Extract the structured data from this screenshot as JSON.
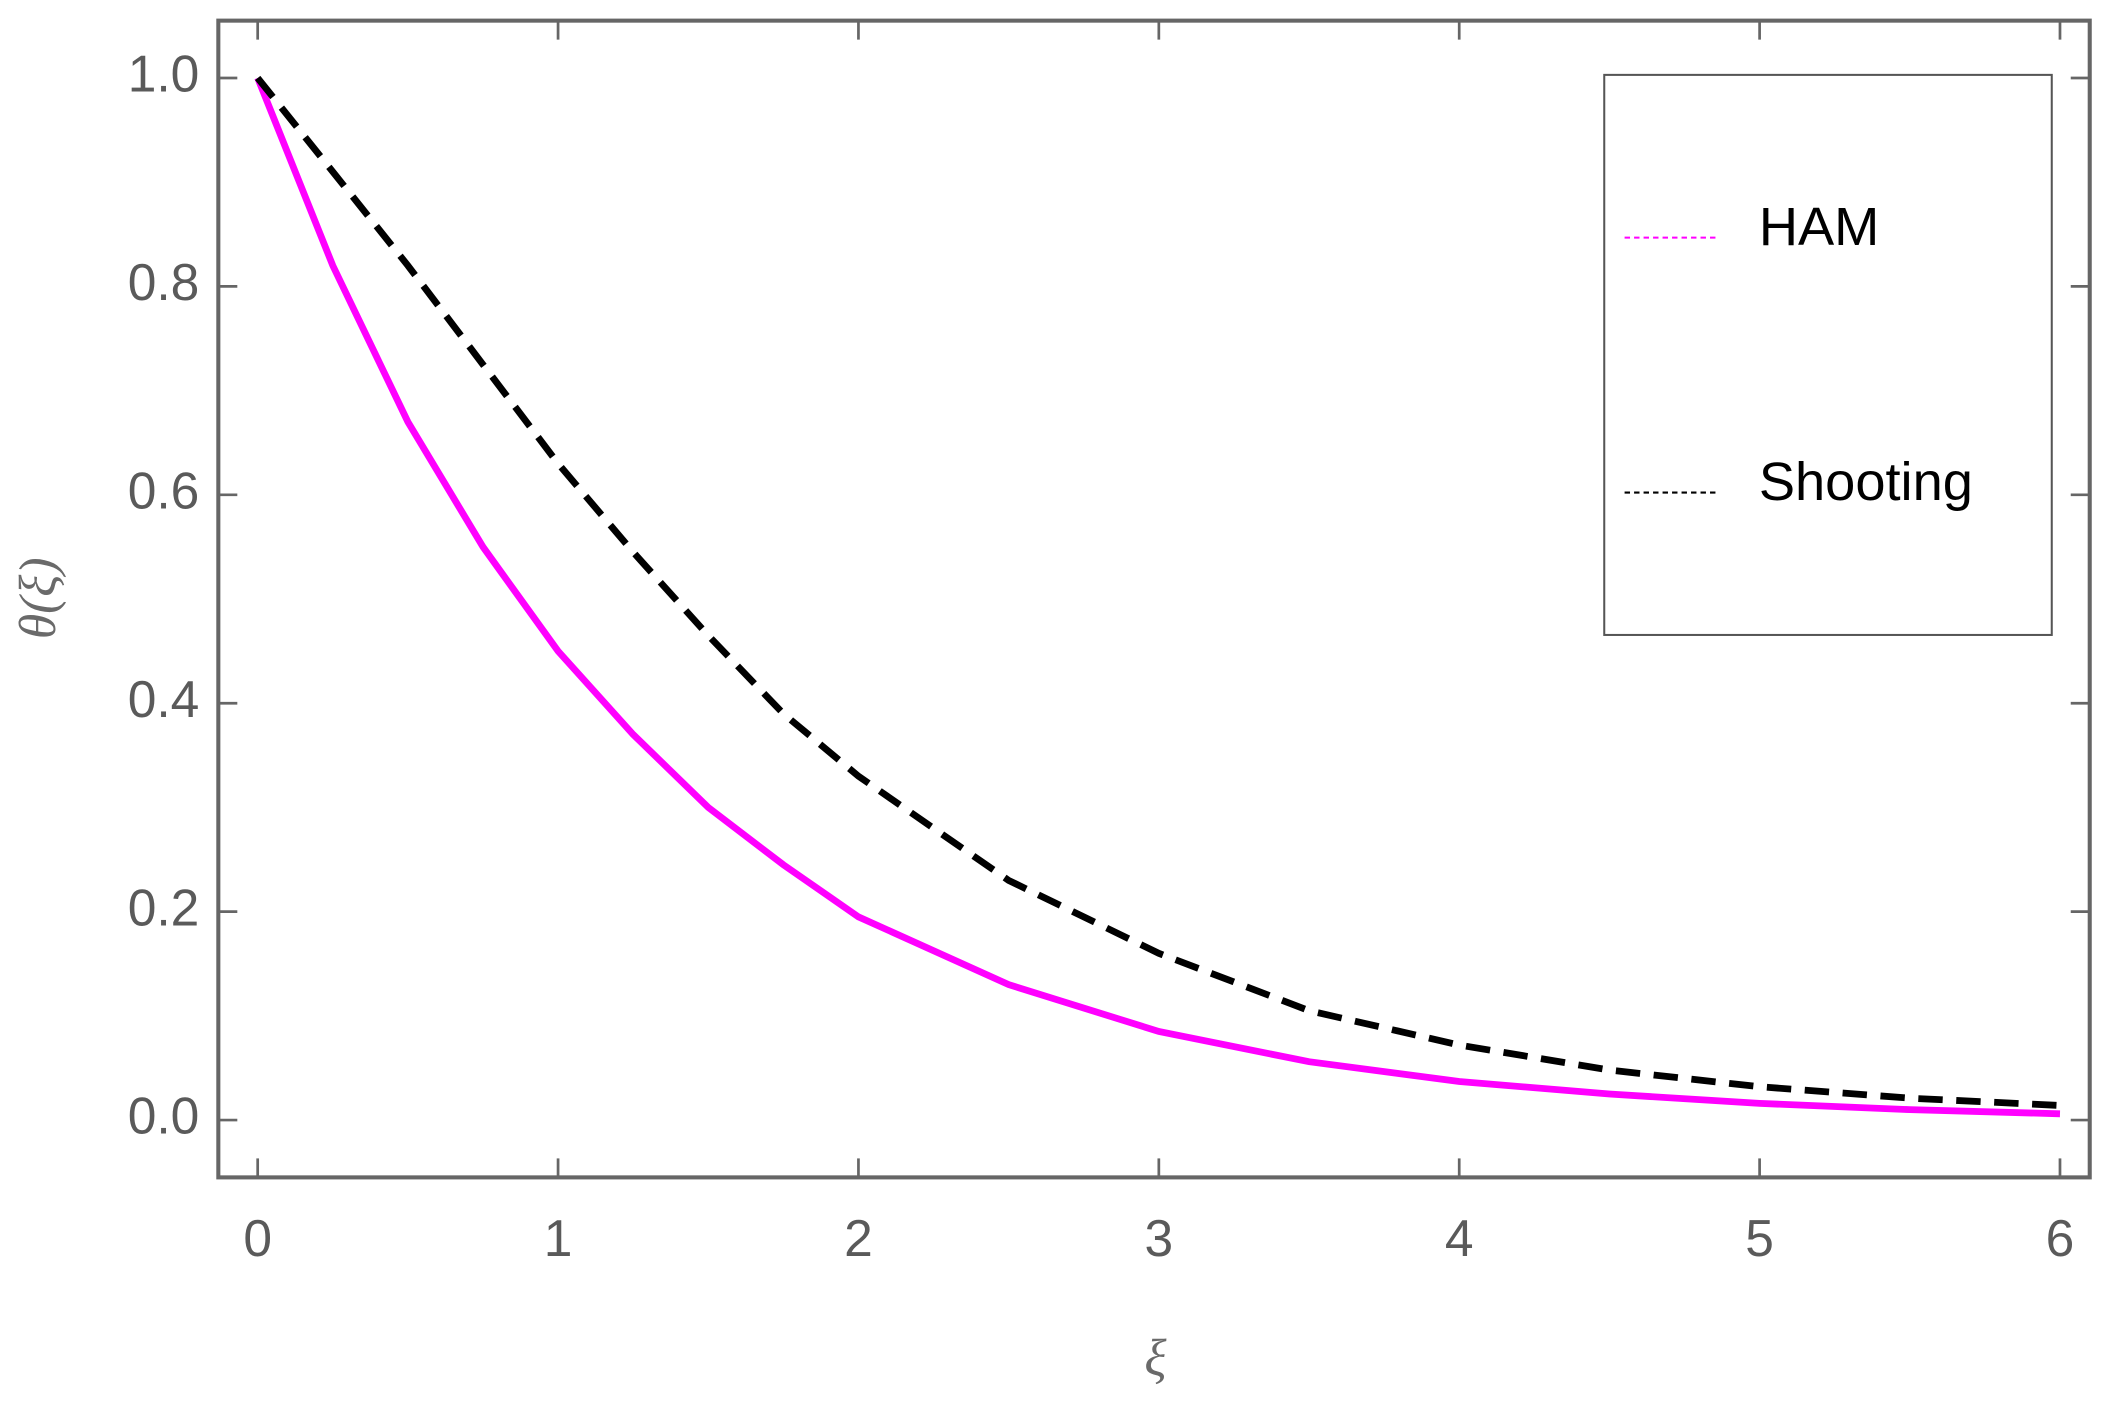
{
  "chart_data": {
    "type": "line",
    "xlabel": "ξ",
    "ylabel": "θ(ξ)",
    "x": [
      0,
      0.25,
      0.5,
      0.75,
      1,
      1.25,
      1.5,
      1.75,
      2,
      2.5,
      3,
      3.5,
      4,
      4.5,
      5,
      5.5,
      6
    ],
    "series": [
      {
        "name": "HAM",
        "color": "#ff00ff",
        "dash": false,
        "values": [
          1.0,
          0.82,
          0.67,
          0.55,
          0.45,
          0.37,
          0.3,
          0.245,
          0.195,
          0.13,
          0.085,
          0.056,
          0.037,
          0.025,
          0.016,
          0.01,
          0.006
        ]
      },
      {
        "name": "Shooting",
        "color": "#000000",
        "dash": true,
        "values": [
          1.0,
          0.91,
          0.82,
          0.725,
          0.63,
          0.545,
          0.465,
          0.39,
          0.33,
          0.23,
          0.16,
          0.105,
          0.072,
          0.048,
          0.032,
          0.021,
          0.014
        ]
      }
    ],
    "xlim": [
      -0.131,
      6.099
    ],
    "ylim": [
      -0.055,
      1.055
    ],
    "xticks": [
      0,
      1,
      2,
      3,
      4,
      5,
      6
    ],
    "yticks": [
      {
        "value": 0,
        "label": "0.0"
      },
      0.2,
      0.4,
      0.6,
      0.8,
      {
        "value": 1,
        "label": "1.0"
      }
    ],
    "legend": "upper right"
  }
}
